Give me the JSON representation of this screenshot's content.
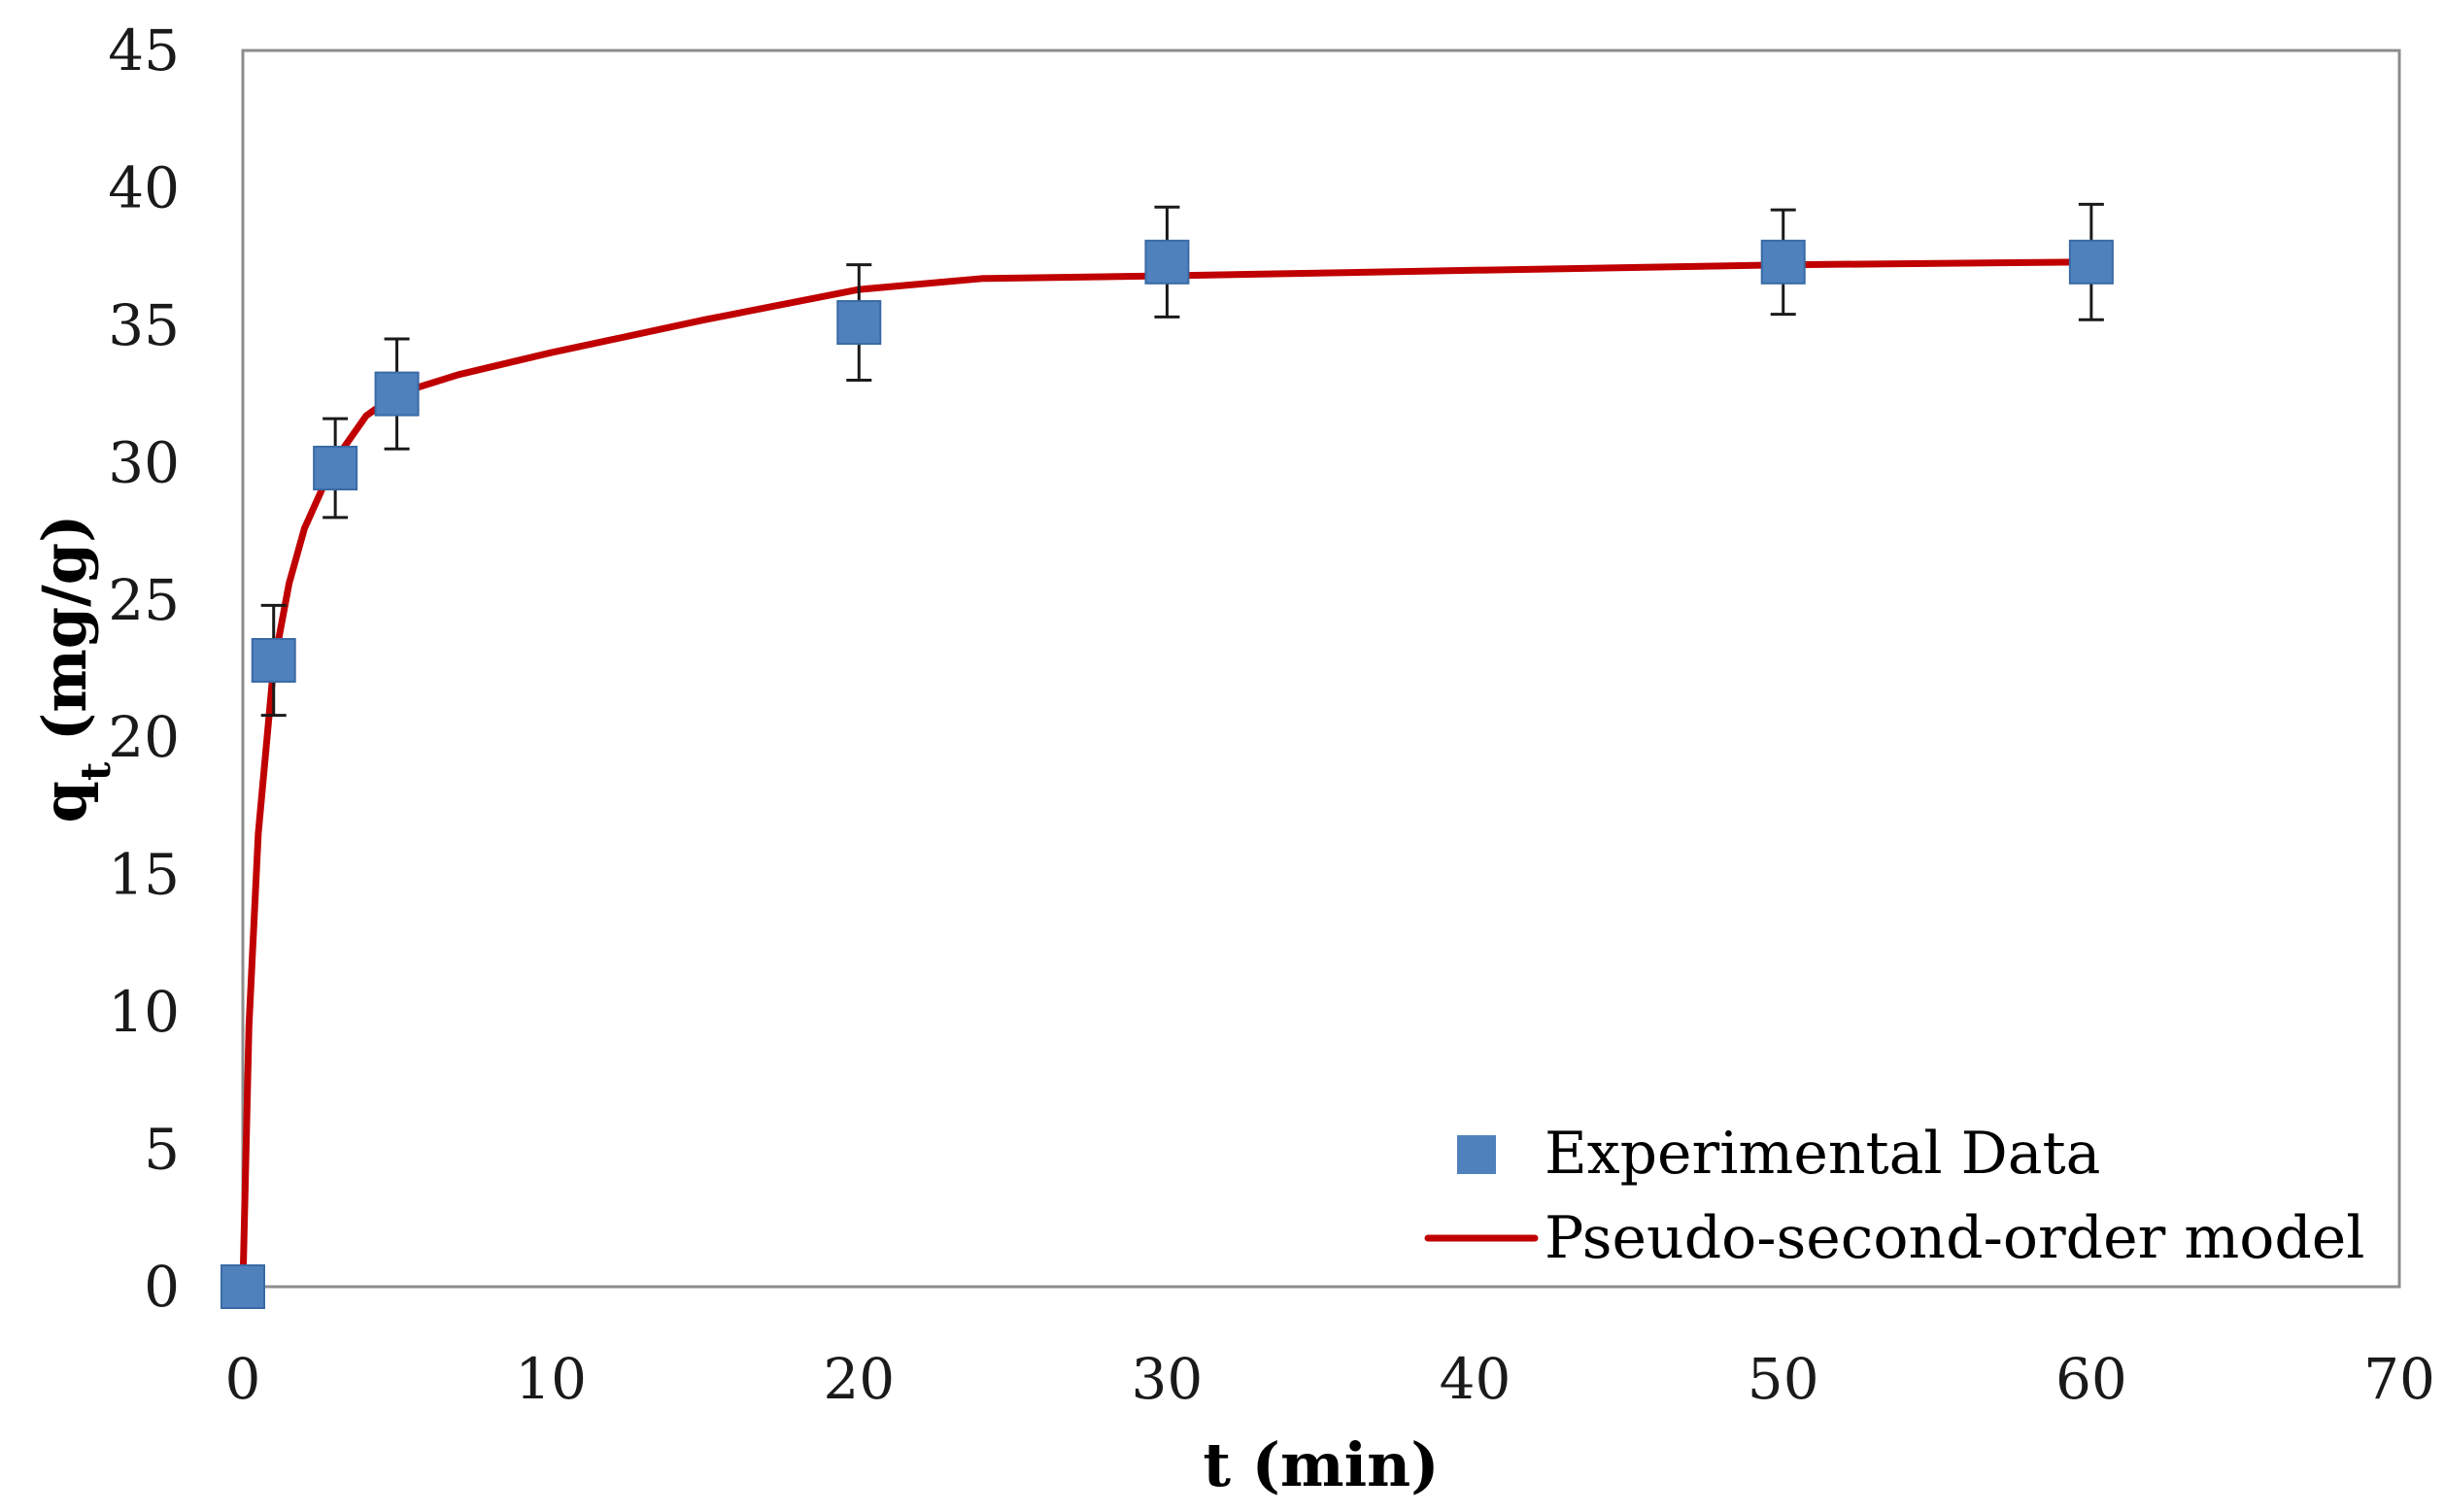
{
  "chart_data": {
    "type": "scatter",
    "title": "",
    "xlabel": "t (min)",
    "ylabel": {
      "base": "q",
      "subscript": "t",
      "unit": " (mg/g)"
    },
    "xlim": [
      0,
      70
    ],
    "ylim": [
      0,
      45
    ],
    "x_ticks": [
      0,
      10,
      20,
      30,
      40,
      50,
      60,
      70
    ],
    "y_ticks": [
      0,
      5,
      10,
      15,
      20,
      25,
      30,
      35,
      40,
      45
    ],
    "grid": false,
    "legend_position": "bottom-right",
    "series": [
      {
        "name": "Experimental Data",
        "kind": "marker",
        "marker": "square",
        "color": "#4f81bd",
        "x": [
          0,
          1,
          3,
          5,
          20,
          30,
          50,
          60
        ],
        "y": [
          0,
          22.8,
          29.8,
          32.5,
          35.1,
          37.3,
          37.3,
          37.3
        ],
        "error": [
          0,
          2.0,
          1.8,
          2.0,
          2.1,
          2.0,
          1.9,
          2.1
        ]
      },
      {
        "name": "Pseudo-second-order model",
        "kind": "line",
        "color": "#c00000",
        "x": [
          0,
          0.2,
          0.5,
          1,
          1.5,
          2,
          3,
          4,
          5,
          7,
          10,
          15,
          20,
          24,
          30,
          40,
          50,
          60
        ],
        "y": [
          0,
          9.5,
          16.5,
          22.6,
          25.6,
          27.6,
          30.1,
          31.7,
          32.5,
          33.2,
          34.0,
          35.2,
          36.3,
          36.7,
          36.8,
          37.0,
          37.2,
          37.3
        ]
      }
    ]
  }
}
